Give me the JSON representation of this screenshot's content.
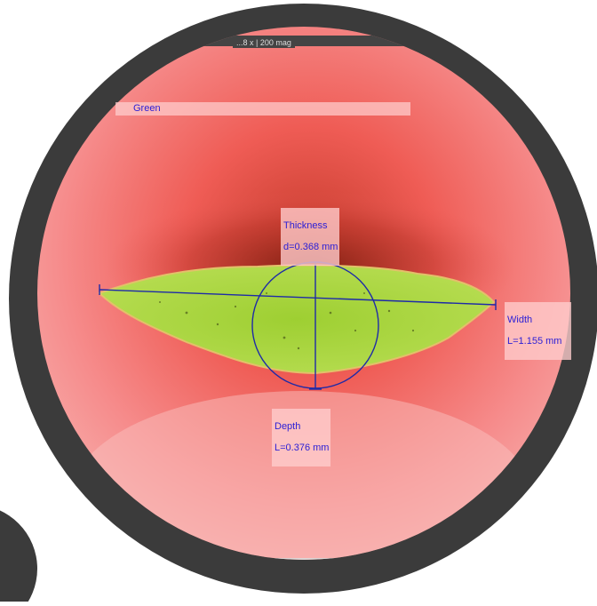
{
  "image": {
    "description_free": true,
    "magnification_label": "...8 x | 200 mag",
    "sample_label": "Green",
    "measurements": {
      "thickness": {
        "label": "Thickness",
        "value": "d=0.368 mm"
      },
      "width": {
        "label": "Width",
        "value": "L=1.155 mm"
      },
      "depth": {
        "label": "Depth",
        "value": "L=0.376 mm"
      }
    },
    "colors": {
      "vignette": "#3a3a3a",
      "background": "#f27a7a",
      "leaf": "#a6d43a",
      "annotation": "#2a1ed6"
    }
  }
}
